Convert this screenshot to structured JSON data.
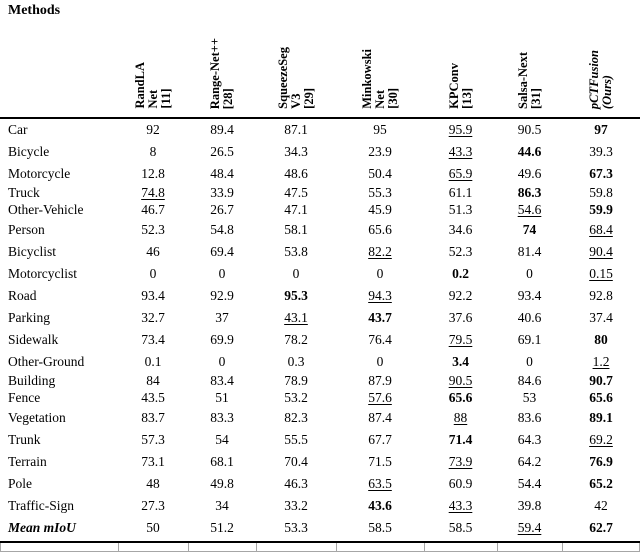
{
  "title": "Methods",
  "table": {
    "column_headers": [
      {
        "lines": [
          "RandLA",
          "Net",
          "[11]"
        ],
        "italic": false
      },
      {
        "lines": [
          "Range-Net++",
          "[28]"
        ],
        "italic": false
      },
      {
        "lines": [
          "SqueezeSeg",
          "V3",
          "[29]"
        ],
        "italic": false
      },
      {
        "lines": [
          "Minkowski",
          "Net",
          "[30]"
        ],
        "italic": false
      },
      {
        "lines": [
          "KPConv",
          "[13]"
        ],
        "italic": false
      },
      {
        "lines": [
          "Salsa-Next",
          "[31]"
        ],
        "italic": false
      },
      {
        "lines": [
          "pCTFusion",
          "(Ours)"
        ],
        "italic": true
      }
    ],
    "rows": [
      {
        "label": "Car",
        "values": [
          "92",
          "89.4",
          "87.1",
          "95",
          "95.9",
          "90.5",
          "97"
        ],
        "styles": [
          "",
          "",
          "",
          "",
          "u",
          "",
          "b"
        ]
      },
      {
        "label": "Bicycle",
        "values": [
          "8",
          "26.5",
          "34.3",
          "23.9",
          "43.3",
          "44.6",
          "39.3"
        ],
        "styles": [
          "",
          "",
          "",
          "",
          "u",
          "b",
          ""
        ]
      },
      {
        "label": "Motorcycle",
        "values": [
          "12.8",
          "48.4",
          "48.6",
          "50.4",
          "65.9",
          "49.6",
          "67.3"
        ],
        "styles": [
          "",
          "",
          "",
          "",
          "u",
          "",
          "b"
        ]
      },
      {
        "label": "Truck",
        "values": [
          "74.8",
          "33.9",
          "47.5",
          "55.3",
          "61.1",
          "86.3",
          "59.8"
        ],
        "styles": [
          "u",
          "",
          "",
          "",
          "",
          "b",
          ""
        ],
        "tight": true
      },
      {
        "label": "Other-Vehicle",
        "values": [
          "46.7",
          "26.7",
          "47.1",
          "45.9",
          "51.3",
          "54.6",
          "59.9"
        ],
        "styles": [
          "",
          "",
          "",
          "",
          "",
          "u",
          "b"
        ],
        "tight": true
      },
      {
        "label": "Person",
        "values": [
          "52.3",
          "54.8",
          "58.1",
          "65.6",
          "34.6",
          "74",
          "68.4"
        ],
        "styles": [
          "",
          "",
          "",
          "",
          "",
          "b",
          "u"
        ]
      },
      {
        "label": "Bicyclist",
        "values": [
          "46",
          "69.4",
          "53.8",
          "82.2",
          "52.3",
          "81.4",
          "90.4"
        ],
        "styles": [
          "",
          "",
          "",
          "u",
          "",
          "",
          "u"
        ]
      },
      {
        "label": "Motorcyclist",
        "values": [
          "0",
          "0",
          "0",
          "0",
          "0.2",
          "0",
          "0.15"
        ],
        "styles": [
          "",
          "",
          "",
          "",
          "b",
          "",
          "u"
        ]
      },
      {
        "label": "Road",
        "values": [
          "93.4",
          "92.9",
          "95.3",
          "94.3",
          "92.2",
          "93.4",
          "92.8"
        ],
        "styles": [
          "",
          "",
          "b",
          "u",
          "",
          "",
          ""
        ]
      },
      {
        "label": "Parking",
        "values": [
          "32.7",
          "37",
          "43.1",
          "43.7",
          "37.6",
          "40.6",
          "37.4"
        ],
        "styles": [
          "",
          "",
          "u",
          "b",
          "",
          "",
          ""
        ]
      },
      {
        "label": "Sidewalk",
        "values": [
          "73.4",
          "69.9",
          "78.2",
          "76.4",
          "79.5",
          "69.1",
          "80"
        ],
        "styles": [
          "",
          "",
          "",
          "",
          "u",
          "",
          "b"
        ]
      },
      {
        "label": "Other-Ground",
        "values": [
          "0.1",
          "0",
          "0.3",
          "0",
          "3.4",
          "0",
          "1.2"
        ],
        "styles": [
          "",
          "",
          "",
          "",
          "b",
          "",
          "u"
        ]
      },
      {
        "label": "Building",
        "values": [
          "84",
          "83.4",
          "78.9",
          "87.9",
          "90.5",
          "84.6",
          "90.7"
        ],
        "styles": [
          "",
          "",
          "",
          "",
          "u",
          "",
          "b"
        ],
        "tight": true
      },
      {
        "label": "Fence",
        "values": [
          "43.5",
          "51",
          "53.2",
          "57.6",
          "65.6",
          "53",
          "65.6"
        ],
        "styles": [
          "",
          "",
          "",
          "u",
          "b",
          "",
          "b"
        ],
        "tight": true
      },
      {
        "label": "Vegetation",
        "values": [
          "83.7",
          "83.3",
          "82.3",
          "87.4",
          "88",
          "83.6",
          "89.1"
        ],
        "styles": [
          "",
          "",
          "",
          "",
          "u",
          "",
          "b"
        ]
      },
      {
        "label": "Trunk",
        "values": [
          "57.3",
          "54",
          "55.5",
          "67.7",
          "71.4",
          "64.3",
          "69.2"
        ],
        "styles": [
          "",
          "",
          "",
          "",
          "b",
          "",
          "u"
        ]
      },
      {
        "label": "Terrain",
        "values": [
          "73.1",
          "68.1",
          "70.4",
          "71.5",
          "73.9",
          "64.2",
          "76.9"
        ],
        "styles": [
          "",
          "",
          "",
          "",
          "u",
          "",
          "b"
        ]
      },
      {
        "label": "Pole",
        "values": [
          "48",
          "49.8",
          "46.3",
          "63.5",
          "60.9",
          "54.4",
          "65.2"
        ],
        "styles": [
          "",
          "",
          "",
          "u",
          "",
          "",
          "b"
        ]
      },
      {
        "label": "Traffic-Sign",
        "values": [
          "27.3",
          "34",
          "33.2",
          "43.6",
          "43.3",
          "39.8",
          "42"
        ],
        "styles": [
          "",
          "",
          "",
          "b",
          "u",
          "",
          ""
        ]
      },
      {
        "label": "Mean mIoU",
        "values": [
          "50",
          "51.2",
          "53.3",
          "58.5",
          "58.5",
          "59.4",
          "62.7"
        ],
        "styles": [
          "",
          "",
          "",
          "",
          "",
          "u",
          "b"
        ],
        "label_em": true
      }
    ]
  },
  "colors": {
    "text": "#000000",
    "rule": "#000000",
    "cut_row_border": "#a6a6a6"
  }
}
